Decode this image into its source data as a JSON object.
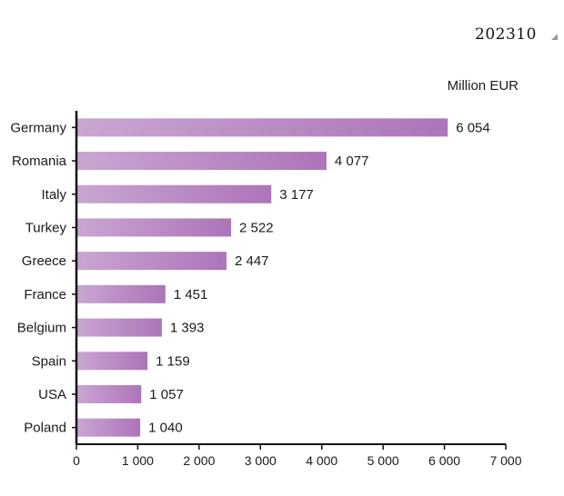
{
  "header": {
    "code": "202310"
  },
  "chart_data": {
    "type": "bar",
    "orientation": "horizontal",
    "unit_label": "Million EUR",
    "categories": [
      "Germany",
      "Romania",
      "Italy",
      "Turkey",
      "Greece",
      "France",
      "Belgium",
      "Spain",
      "USA",
      "Poland"
    ],
    "values": [
      6054,
      4077,
      3177,
      2522,
      2447,
      1451,
      1393,
      1159,
      1057,
      1040
    ],
    "value_labels": [
      "6 054",
      "4 077",
      "3 177",
      "2 522",
      "2 447",
      "1 451",
      "1 393",
      "1 159",
      "1 057",
      "1 040"
    ],
    "xlim": [
      0,
      7000
    ],
    "xticks": [
      0,
      1000,
      2000,
      3000,
      4000,
      5000,
      6000,
      7000
    ],
    "xtick_labels": [
      "0",
      "1 000",
      "2 000",
      "3 000",
      "4 000",
      "5 000",
      "6 000",
      "7 000"
    ],
    "grid": false,
    "colors": {
      "bar_start": "#c9a6d2",
      "bar_end": "#ad74b9",
      "axis": "#111111"
    }
  }
}
